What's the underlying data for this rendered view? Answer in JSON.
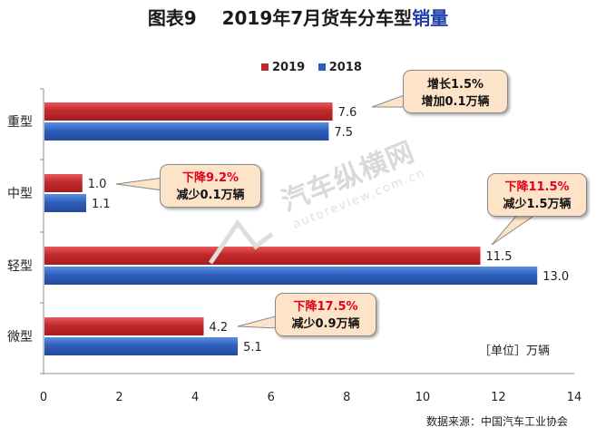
{
  "title": {
    "prefix": "图表9",
    "main": "2019年7月货车分车型",
    "highlight": "销量"
  },
  "legend": [
    {
      "name": "2019",
      "color": "#c0292b"
    },
    {
      "name": "2018",
      "color": "#2f5fbd"
    }
  ],
  "unit_label": "［单位］万辆",
  "source_label": "数据来源：中国汽车工业协会",
  "watermark": {
    "cn": "汽车纵横网",
    "en": "autoreview.com.cn"
  },
  "callouts": {
    "heavy": {
      "line1": "增长1.5%",
      "line2": "增加0.1万辆"
    },
    "medium": {
      "line1": "下降9.2%",
      "line2": "减少0.1万辆"
    },
    "light": {
      "line1": "下降11.5%",
      "line2": "减少1.5万辆"
    },
    "mini": {
      "line1": "下降17.5%",
      "line2": "减少0.9万辆"
    }
  },
  "chart_data": {
    "type": "bar",
    "orientation": "horizontal",
    "categories": [
      "重型",
      "中型",
      "轻型",
      "微型"
    ],
    "series": [
      {
        "name": "2019",
        "values": [
          7.6,
          1.0,
          11.5,
          4.2
        ],
        "labels": [
          "7.6",
          "1.0",
          "11.5",
          "4.2"
        ],
        "color": "#c0292b"
      },
      {
        "name": "2018",
        "values": [
          7.5,
          1.1,
          13.0,
          5.1
        ],
        "labels": [
          "7.5",
          "1.1",
          "13.0",
          "5.1"
        ],
        "color": "#2f5fbd"
      }
    ],
    "xlim": [
      0,
      14
    ],
    "xticks": [
      "0",
      "2",
      "4",
      "6",
      "8",
      "10",
      "12",
      "14"
    ],
    "grid": false,
    "legend_position": "top"
  }
}
